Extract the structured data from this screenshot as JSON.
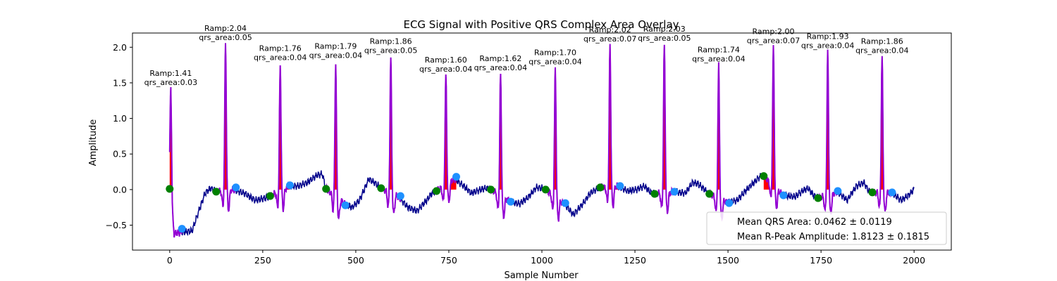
{
  "chart_data": {
    "type": "line",
    "title": "ECG Signal with Positive QRS Complex Area Overlay",
    "xlabel": "Sample Number",
    "ylabel": "Amplitude",
    "xlim": [
      -100,
      2100
    ],
    "ylim": [
      -0.85,
      2.2
    ],
    "xticks": [
      0,
      250,
      500,
      750,
      1000,
      1250,
      1500,
      1750,
      2000
    ],
    "yticks": [
      -0.5,
      0.0,
      0.5,
      1.0,
      1.5,
      2.0
    ],
    "ytick_labels": [
      "−0.5",
      "0.0",
      "0.5",
      "1.0",
      "1.5",
      "2.0"
    ],
    "grid": false,
    "colors": {
      "signal": "#00008B",
      "qrs_segment": "#9400D3",
      "qrs_fill": "#FF0000",
      "onset_marker": "#008000",
      "offset_marker": "#1E90FF"
    },
    "beats": [
      {
        "r_x": 3,
        "r_amp": 1.41,
        "ramp_label": "Ramp:1.41",
        "area_label": "qrs_area:0.03",
        "onset": [
          0,
          0.01
        ],
        "offset": [
          33,
          -0.55
        ]
      },
      {
        "r_x": 150,
        "r_amp": 2.04,
        "ramp_label": "Ramp:2.04",
        "area_label": "qrs_area:0.05",
        "onset": [
          125,
          -0.03
        ],
        "offset": [
          178,
          0.03
        ]
      },
      {
        "r_x": 297,
        "r_amp": 1.76,
        "ramp_label": "Ramp:1.76",
        "area_label": "qrs_area:0.04",
        "onset": [
          270,
          -0.09
        ],
        "offset": [
          323,
          0.06
        ]
      },
      {
        "r_x": 446,
        "r_amp": 1.79,
        "ramp_label": "Ramp:1.79",
        "area_label": "qrs_area:0.04",
        "onset": [
          420,
          0.01
        ],
        "offset": [
          472,
          -0.22
        ]
      },
      {
        "r_x": 594,
        "r_amp": 1.86,
        "ramp_label": "Ramp:1.86",
        "area_label": "qrs_area:0.05",
        "onset": [
          568,
          0.02
        ],
        "offset": [
          620,
          -0.09
        ]
      },
      {
        "r_x": 742,
        "r_amp": 1.6,
        "ramp_label": "Ramp:1.60",
        "area_label": "qrs_area:0.04",
        "onset": [
          717,
          -0.02
        ],
        "offset": [
          770,
          0.18
        ]
      },
      {
        "r_x": 889,
        "r_amp": 1.62,
        "ramp_label": "Ramp:1.62",
        "area_label": "qrs_area:0.04",
        "onset": [
          863,
          0.0
        ],
        "offset": [
          916,
          -0.17
        ]
      },
      {
        "r_x": 1036,
        "r_amp": 1.7,
        "ramp_label": "Ramp:1.70",
        "area_label": "qrs_area:0.04",
        "onset": [
          1010,
          0.0
        ],
        "offset": [
          1063,
          -0.19
        ]
      },
      {
        "r_x": 1183,
        "r_amp": 2.02,
        "ramp_label": "Ramp:2.02",
        "area_label": "qrs_area:0.07",
        "onset": [
          1157,
          0.03
        ],
        "offset": [
          1210,
          0.05
        ]
      },
      {
        "r_x": 1329,
        "r_amp": 2.03,
        "ramp_label": "Ramp:2.03",
        "area_label": "qrs_area:0.05",
        "onset": [
          1303,
          -0.06
        ],
        "offset": [
          1356,
          -0.03
        ]
      },
      {
        "r_x": 1475,
        "r_amp": 1.74,
        "ramp_label": "Ramp:1.74",
        "area_label": "qrs_area:0.04",
        "onset": [
          1450,
          -0.06
        ],
        "offset": [
          1503,
          -0.19
        ]
      },
      {
        "r_x": 1622,
        "r_amp": 2.0,
        "ramp_label": "Ramp:2.00",
        "area_label": "qrs_area:0.07",
        "onset": [
          1596,
          0.19
        ],
        "offset": [
          1649,
          -0.08
        ]
      },
      {
        "r_x": 1768,
        "r_amp": 1.93,
        "ramp_label": "Ramp:1.93",
        "area_label": "qrs_area:0.04",
        "onset": [
          1742,
          -0.12
        ],
        "offset": [
          1795,
          -0.02
        ]
      },
      {
        "r_x": 1914,
        "r_amp": 1.86,
        "ramp_label": "Ramp:1.86",
        "area_label": "qrs_area:0.04",
        "onset": [
          1888,
          -0.04
        ],
        "offset": [
          1941,
          -0.04
        ]
      }
    ],
    "baseline_knots": [
      [
        0,
        0.0
      ],
      [
        12,
        -0.62
      ],
      [
        30,
        -0.6
      ],
      [
        60,
        -0.58
      ],
      [
        75,
        -0.35
      ],
      [
        95,
        -0.05
      ],
      [
        110,
        0.02
      ],
      [
        125,
        -0.03
      ],
      [
        170,
        0.0
      ],
      [
        200,
        -0.05
      ],
      [
        230,
        -0.15
      ],
      [
        255,
        -0.12
      ],
      [
        270,
        -0.09
      ],
      [
        320,
        0.05
      ],
      [
        345,
        0.05
      ],
      [
        370,
        0.1
      ],
      [
        395,
        0.2
      ],
      [
        410,
        0.22
      ],
      [
        420,
        0.01
      ],
      [
        470,
        -0.2
      ],
      [
        490,
        -0.25
      ],
      [
        510,
        -0.15
      ],
      [
        535,
        0.15
      ],
      [
        555,
        0.08
      ],
      [
        568,
        0.02
      ],
      [
        615,
        -0.1
      ],
      [
        640,
        -0.25
      ],
      [
        665,
        -0.3
      ],
      [
        690,
        -0.15
      ],
      [
        705,
        -0.05
      ],
      [
        717,
        -0.02
      ],
      [
        765,
        0.15
      ],
      [
        790,
        0.05
      ],
      [
        810,
        -0.05
      ],
      [
        835,
        0.0
      ],
      [
        850,
        0.02
      ],
      [
        863,
        0.0
      ],
      [
        915,
        -0.17
      ],
      [
        940,
        -0.2
      ],
      [
        965,
        -0.1
      ],
      [
        985,
        0.03
      ],
      [
        1000,
        0.02
      ],
      [
        1010,
        0.0
      ],
      [
        1060,
        -0.2
      ],
      [
        1085,
        -0.35
      ],
      [
        1110,
        -0.2
      ],
      [
        1130,
        -0.05
      ],
      [
        1145,
        0.0
      ],
      [
        1157,
        0.03
      ],
      [
        1205,
        0.05
      ],
      [
        1230,
        -0.02
      ],
      [
        1255,
        0.0
      ],
      [
        1275,
        0.05
      ],
      [
        1290,
        -0.03
      ],
      [
        1303,
        -0.06
      ],
      [
        1355,
        -0.03
      ],
      [
        1385,
        -0.05
      ],
      [
        1405,
        0.1
      ],
      [
        1420,
        0.08
      ],
      [
        1437,
        0.0
      ],
      [
        1450,
        -0.06
      ],
      [
        1500,
        -0.18
      ],
      [
        1525,
        -0.15
      ],
      [
        1550,
        0.0
      ],
      [
        1570,
        0.1
      ],
      [
        1585,
        0.18
      ],
      [
        1596,
        0.19
      ],
      [
        1648,
        -0.08
      ],
      [
        1680,
        -0.1
      ],
      [
        1700,
        -0.02
      ],
      [
        1715,
        0.02
      ],
      [
        1730,
        -0.08
      ],
      [
        1742,
        -0.12
      ],
      [
        1795,
        -0.03
      ],
      [
        1820,
        -0.15
      ],
      [
        1845,
        0.05
      ],
      [
        1865,
        0.1
      ],
      [
        1878,
        -0.02
      ],
      [
        1888,
        -0.04
      ],
      [
        1940,
        -0.04
      ],
      [
        1965,
        -0.15
      ],
      [
        1985,
        -0.08
      ],
      [
        2000,
        0.0
      ]
    ],
    "legend": {
      "placement": "lower-right",
      "entries": [
        "Mean QRS Area: 0.0462 ± 0.0119",
        "Mean R-Peak Amplitude: 1.8123 ± 0.1815"
      ]
    }
  }
}
